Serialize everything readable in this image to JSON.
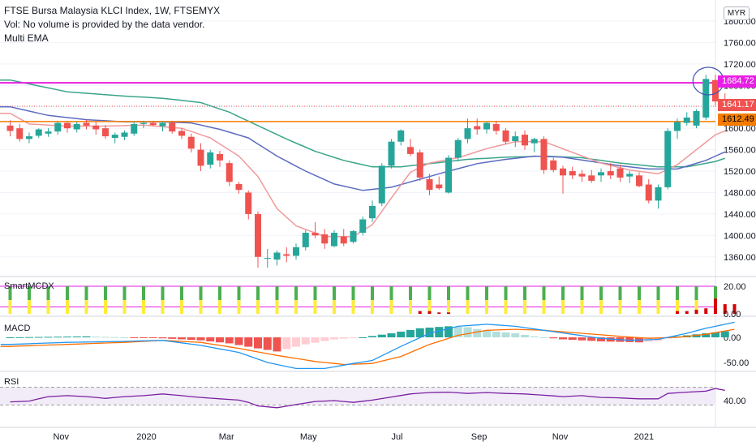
{
  "header": {
    "line1": "FTSE Bursa Malaysia KLCI Index, 1W, FTSEMYX",
    "line2": "Vol: No volume is provided by the data vendor.",
    "line3": "Multi EMA"
  },
  "currency": "MYR",
  "panes": {
    "smartmcdx": "SmartMCDX",
    "macd": "MACD",
    "rsi": "RSI"
  },
  "price_labels": {
    "resistance": "1684.72",
    "last": "1641.17",
    "support": "1612.49"
  },
  "colors": {
    "up": "#26a69a",
    "down": "#ef5350",
    "resistance_line": "#e91ee5",
    "support_line": "#f57c00",
    "ema_fast": "#ef9a9a",
    "ema_mid": "#5c6bc0",
    "ema_slow": "#3aa58a",
    "rsi": "#7b1fa2",
    "macd_line": "#2196f3",
    "signal_line": "#ff6d00",
    "annotation": "#3f51b5"
  },
  "chart_data": {
    "type": "candlestick",
    "title": "FTSE Bursa Malaysia KLCI Index, 1W, FTSEMYX",
    "y_axis": {
      "ticks": [
        "1800.00",
        "1760.00",
        "1720.00",
        "1680.00",
        "1640.00",
        "1600.00",
        "1560.00",
        "1520.00",
        "1480.00",
        "1440.00",
        "1400.00",
        "1360.00"
      ],
      "range": [
        1340,
        1810
      ]
    },
    "x_axis_labels": [
      "Nov",
      "2020",
      "Mar",
      "May",
      "Jul",
      "Sep",
      "Nov",
      "2021"
    ],
    "horizontal_lines": [
      1684.72,
      1612.49
    ],
    "last_price": 1641.17,
    "candles": [
      {
        "o": 1605,
        "h": 1615,
        "l": 1585,
        "c": 1595
      },
      {
        "o": 1600,
        "h": 1608,
        "l": 1575,
        "c": 1580
      },
      {
        "o": 1580,
        "h": 1592,
        "l": 1572,
        "c": 1585
      },
      {
        "o": 1586,
        "h": 1600,
        "l": 1582,
        "c": 1598
      },
      {
        "o": 1590,
        "h": 1600,
        "l": 1584,
        "c": 1594
      },
      {
        "o": 1594,
        "h": 1612,
        "l": 1588,
        "c": 1610
      },
      {
        "o": 1610,
        "h": 1612,
        "l": 1592,
        "c": 1600
      },
      {
        "o": 1598,
        "h": 1612,
        "l": 1592,
        "c": 1608
      },
      {
        "o": 1610,
        "h": 1616,
        "l": 1598,
        "c": 1605
      },
      {
        "o": 1605,
        "h": 1612,
        "l": 1588,
        "c": 1598
      },
      {
        "o": 1600,
        "h": 1606,
        "l": 1580,
        "c": 1585
      },
      {
        "o": 1582,
        "h": 1592,
        "l": 1572,
        "c": 1588
      },
      {
        "o": 1584,
        "h": 1596,
        "l": 1578,
        "c": 1592
      },
      {
        "o": 1590,
        "h": 1612,
        "l": 1586,
        "c": 1608
      },
      {
        "o": 1608,
        "h": 1614,
        "l": 1600,
        "c": 1610
      },
      {
        "o": 1610,
        "h": 1614,
        "l": 1604,
        "c": 1606
      },
      {
        "o": 1604,
        "h": 1612,
        "l": 1594,
        "c": 1610
      },
      {
        "o": 1610,
        "h": 1614,
        "l": 1590,
        "c": 1594
      },
      {
        "o": 1595,
        "h": 1600,
        "l": 1580,
        "c": 1586
      },
      {
        "o": 1584,
        "h": 1590,
        "l": 1555,
        "c": 1562
      },
      {
        "o": 1560,
        "h": 1572,
        "l": 1520,
        "c": 1530
      },
      {
        "o": 1532,
        "h": 1560,
        "l": 1525,
        "c": 1555
      },
      {
        "o": 1552,
        "h": 1558,
        "l": 1528,
        "c": 1540
      },
      {
        "o": 1535,
        "h": 1540,
        "l": 1492,
        "c": 1500
      },
      {
        "o": 1496,
        "h": 1500,
        "l": 1478,
        "c": 1485
      },
      {
        "o": 1480,
        "h": 1484,
        "l": 1430,
        "c": 1440
      },
      {
        "o": 1440,
        "h": 1445,
        "l": 1340,
        "c": 1360
      },
      {
        "o": 1358,
        "h": 1375,
        "l": 1340,
        "c": 1358
      },
      {
        "o": 1355,
        "h": 1372,
        "l": 1344,
        "c": 1368
      },
      {
        "o": 1365,
        "h": 1378,
        "l": 1350,
        "c": 1362
      },
      {
        "o": 1362,
        "h": 1385,
        "l": 1355,
        "c": 1378
      },
      {
        "o": 1378,
        "h": 1410,
        "l": 1372,
        "c": 1405
      },
      {
        "o": 1405,
        "h": 1425,
        "l": 1395,
        "c": 1400
      },
      {
        "o": 1402,
        "h": 1412,
        "l": 1375,
        "c": 1385
      },
      {
        "o": 1380,
        "h": 1410,
        "l": 1378,
        "c": 1405
      },
      {
        "o": 1398,
        "h": 1412,
        "l": 1380,
        "c": 1385
      },
      {
        "o": 1388,
        "h": 1410,
        "l": 1385,
        "c": 1408
      },
      {
        "o": 1405,
        "h": 1435,
        "l": 1400,
        "c": 1430
      },
      {
        "o": 1432,
        "h": 1465,
        "l": 1425,
        "c": 1455
      },
      {
        "o": 1460,
        "h": 1535,
        "l": 1455,
        "c": 1530
      },
      {
        "o": 1530,
        "h": 1580,
        "l": 1525,
        "c": 1575
      },
      {
        "o": 1575,
        "h": 1598,
        "l": 1568,
        "c": 1596
      },
      {
        "o": 1565,
        "h": 1580,
        "l": 1548,
        "c": 1552
      },
      {
        "o": 1555,
        "h": 1560,
        "l": 1502,
        "c": 1508
      },
      {
        "o": 1505,
        "h": 1515,
        "l": 1475,
        "c": 1485
      },
      {
        "o": 1495,
        "h": 1510,
        "l": 1485,
        "c": 1488
      },
      {
        "o": 1480,
        "h": 1550,
        "l": 1478,
        "c": 1545
      },
      {
        "o": 1545,
        "h": 1582,
        "l": 1538,
        "c": 1578
      },
      {
        "o": 1580,
        "h": 1618,
        "l": 1572,
        "c": 1600
      },
      {
        "o": 1604,
        "h": 1618,
        "l": 1588,
        "c": 1598
      },
      {
        "o": 1598,
        "h": 1612,
        "l": 1590,
        "c": 1610
      },
      {
        "o": 1608,
        "h": 1614,
        "l": 1588,
        "c": 1595
      },
      {
        "o": 1596,
        "h": 1600,
        "l": 1570,
        "c": 1575
      },
      {
        "o": 1576,
        "h": 1594,
        "l": 1565,
        "c": 1585
      },
      {
        "o": 1588,
        "h": 1596,
        "l": 1560,
        "c": 1568
      },
      {
        "o": 1572,
        "h": 1582,
        "l": 1555,
        "c": 1580
      },
      {
        "o": 1580,
        "h": 1585,
        "l": 1515,
        "c": 1522
      },
      {
        "o": 1540,
        "h": 1545,
        "l": 1518,
        "c": 1522
      },
      {
        "o": 1525,
        "h": 1530,
        "l": 1478,
        "c": 1512
      },
      {
        "o": 1520,
        "h": 1528,
        "l": 1505,
        "c": 1512
      },
      {
        "o": 1515,
        "h": 1522,
        "l": 1500,
        "c": 1510
      },
      {
        "o": 1512,
        "h": 1522,
        "l": 1498,
        "c": 1502
      },
      {
        "o": 1512,
        "h": 1525,
        "l": 1500,
        "c": 1518
      },
      {
        "o": 1520,
        "h": 1535,
        "l": 1505,
        "c": 1512
      },
      {
        "o": 1525,
        "h": 1532,
        "l": 1500,
        "c": 1508
      },
      {
        "o": 1510,
        "h": 1520,
        "l": 1498,
        "c": 1515
      },
      {
        "o": 1512,
        "h": 1518,
        "l": 1490,
        "c": 1492
      },
      {
        "o": 1495,
        "h": 1505,
        "l": 1460,
        "c": 1465
      },
      {
        "o": 1465,
        "h": 1495,
        "l": 1450,
        "c": 1490
      },
      {
        "o": 1490,
        "h": 1600,
        "l": 1486,
        "c": 1595
      },
      {
        "o": 1595,
        "h": 1618,
        "l": 1580,
        "c": 1612
      },
      {
        "o": 1610,
        "h": 1630,
        "l": 1605,
        "c": 1620
      },
      {
        "o": 1605,
        "h": 1635,
        "l": 1600,
        "c": 1632
      },
      {
        "o": 1620,
        "h": 1700,
        "l": 1615,
        "c": 1692
      },
      {
        "o": 1690,
        "h": 1700,
        "l": 1640,
        "c": 1650
      },
      {
        "o": 1650,
        "h": 1665,
        "l": 1635,
        "c": 1641
      }
    ],
    "ema_fast_anchors": [
      [
        0,
        1628
      ],
      [
        2,
        1608
      ],
      [
        6,
        1604
      ],
      [
        10,
        1604
      ],
      [
        14,
        1606
      ],
      [
        18,
        1600
      ],
      [
        21,
        1582
      ],
      [
        24,
        1548
      ],
      [
        26,
        1510
      ],
      [
        28,
        1450
      ],
      [
        30,
        1418
      ],
      [
        33,
        1398
      ],
      [
        36,
        1398
      ],
      [
        38,
        1420
      ],
      [
        40,
        1470
      ],
      [
        42,
        1518
      ],
      [
        44,
        1535
      ],
      [
        47,
        1545
      ],
      [
        50,
        1562
      ],
      [
        53,
        1575
      ],
      [
        56,
        1575
      ],
      [
        59,
        1555
      ],
      [
        62,
        1535
      ],
      [
        65,
        1522
      ],
      [
        68,
        1515
      ],
      [
        70,
        1532
      ],
      [
        72,
        1560
      ],
      [
        74,
        1588
      ],
      [
        76,
        1602
      ]
    ],
    "ema_mid_anchors": [
      [
        0,
        1640
      ],
      [
        4,
        1624
      ],
      [
        8,
        1616
      ],
      [
        12,
        1612
      ],
      [
        16,
        1612
      ],
      [
        19,
        1610
      ],
      [
        22,
        1598
      ],
      [
        25,
        1582
      ],
      [
        28,
        1548
      ],
      [
        31,
        1520
      ],
      [
        34,
        1496
      ],
      [
        37,
        1484
      ],
      [
        40,
        1490
      ],
      [
        43,
        1505
      ],
      [
        46,
        1520
      ],
      [
        49,
        1534
      ],
      [
        52,
        1542
      ],
      [
        55,
        1548
      ],
      [
        58,
        1546
      ],
      [
        61,
        1538
      ],
      [
        64,
        1530
      ],
      [
        67,
        1524
      ],
      [
        70,
        1524
      ],
      [
        73,
        1540
      ],
      [
        76,
        1564
      ]
    ],
    "ema_slow_anchors": [
      [
        0,
        1690
      ],
      [
        6,
        1668
      ],
      [
        12,
        1660
      ],
      [
        16,
        1656
      ],
      [
        20,
        1648
      ],
      [
        23,
        1630
      ],
      [
        26,
        1605
      ],
      [
        29,
        1580
      ],
      [
        32,
        1557
      ],
      [
        35,
        1540
      ],
      [
        38,
        1528
      ],
      [
        41,
        1528
      ],
      [
        44,
        1534
      ],
      [
        48,
        1542
      ],
      [
        52,
        1546
      ],
      [
        56,
        1548
      ],
      [
        60,
        1545
      ],
      [
        64,
        1535
      ],
      [
        68,
        1528
      ],
      [
        71,
        1528
      ],
      [
        74,
        1538
      ],
      [
        76,
        1550
      ]
    ],
    "smartmcdx": {
      "ticks": [
        "20.00",
        "0.00"
      ],
      "red_bars": [
        [
          43,
          2
        ],
        [
          44,
          2
        ],
        [
          45,
          1
        ],
        [
          46,
          1
        ],
        [
          70,
          2
        ],
        [
          71,
          2
        ],
        [
          72,
          3
        ],
        [
          73,
          4
        ],
        [
          74,
          11
        ],
        [
          75,
          7
        ],
        [
          76,
          7
        ]
      ]
    },
    "macd": {
      "ticks": [
        "0.00",
        "-50.00"
      ],
      "histogram_anchors": [
        [
          0,
          0
        ],
        [
          8,
          2
        ],
        [
          16,
          -2
        ],
        [
          20,
          -6
        ],
        [
          23,
          -12
        ],
        [
          26,
          -22
        ],
        [
          28,
          -28
        ],
        [
          31,
          -14
        ],
        [
          34,
          -4
        ],
        [
          37,
          0
        ],
        [
          40,
          8
        ],
        [
          43,
          18
        ],
        [
          46,
          22
        ],
        [
          48,
          20
        ],
        [
          50,
          13
        ],
        [
          53,
          8
        ],
        [
          55,
          2
        ],
        [
          58,
          -4
        ],
        [
          62,
          -8
        ],
        [
          66,
          -10
        ],
        [
          68,
          -7
        ],
        [
          70,
          2
        ],
        [
          73,
          8
        ],
        [
          75,
          12
        ],
        [
          76,
          9
        ]
      ],
      "macd_anchors": [
        [
          0,
          -14
        ],
        [
          6,
          -10
        ],
        [
          12,
          -8
        ],
        [
          16,
          -6
        ],
        [
          20,
          -16
        ],
        [
          24,
          -30
        ],
        [
          27,
          -50
        ],
        [
          30,
          -62
        ],
        [
          33,
          -62
        ],
        [
          36,
          -52
        ],
        [
          38,
          -46
        ],
        [
          41,
          -18
        ],
        [
          44,
          8
        ],
        [
          47,
          22
        ],
        [
          50,
          26
        ],
        [
          53,
          22
        ],
        [
          56,
          14
        ],
        [
          59,
          6
        ],
        [
          62,
          -2
        ],
        [
          65,
          -6
        ],
        [
          68,
          -4
        ],
        [
          71,
          8
        ],
        [
          73,
          18
        ],
        [
          76,
          30
        ]
      ],
      "signal_anchors": [
        [
          0,
          -18
        ],
        [
          6,
          -14
        ],
        [
          12,
          -10
        ],
        [
          16,
          -6
        ],
        [
          20,
          -10
        ],
        [
          24,
          -22
        ],
        [
          28,
          -36
        ],
        [
          32,
          -48
        ],
        [
          35,
          -54
        ],
        [
          38,
          -52
        ],
        [
          41,
          -38
        ],
        [
          44,
          -14
        ],
        [
          47,
          4
        ],
        [
          50,
          14
        ],
        [
          53,
          16
        ],
        [
          56,
          14
        ],
        [
          60,
          8
        ],
        [
          64,
          2
        ],
        [
          67,
          -2
        ],
        [
          70,
          0
        ],
        [
          73,
          6
        ],
        [
          76,
          16
        ]
      ]
    },
    "rsi": {
      "ticks": [
        "40.00"
      ],
      "anchors": [
        [
          0,
          37
        ],
        [
          2,
          39
        ],
        [
          4,
          49
        ],
        [
          6,
          51
        ],
        [
          8,
          49
        ],
        [
          10,
          45
        ],
        [
          12,
          49
        ],
        [
          14,
          51
        ],
        [
          16,
          55
        ],
        [
          18,
          51
        ],
        [
          20,
          47
        ],
        [
          22,
          44
        ],
        [
          24,
          41
        ],
        [
          25,
          36
        ],
        [
          26,
          28
        ],
        [
          28,
          24
        ],
        [
          30,
          31
        ],
        [
          32,
          38
        ],
        [
          34,
          40
        ],
        [
          36,
          36
        ],
        [
          38,
          41
        ],
        [
          40,
          48
        ],
        [
          42,
          55
        ],
        [
          44,
          58
        ],
        [
          46,
          59
        ],
        [
          48,
          56
        ],
        [
          50,
          58
        ],
        [
          52,
          56
        ],
        [
          54,
          55
        ],
        [
          56,
          52
        ],
        [
          58,
          49
        ],
        [
          60,
          51
        ],
        [
          62,
          47
        ],
        [
          64,
          46
        ],
        [
          66,
          44
        ],
        [
          68,
          44
        ],
        [
          69,
          56
        ],
        [
          71,
          59
        ],
        [
          73,
          61
        ],
        [
          74,
          67
        ],
        [
          75,
          63
        ],
        [
          76,
          62
        ]
      ]
    }
  }
}
